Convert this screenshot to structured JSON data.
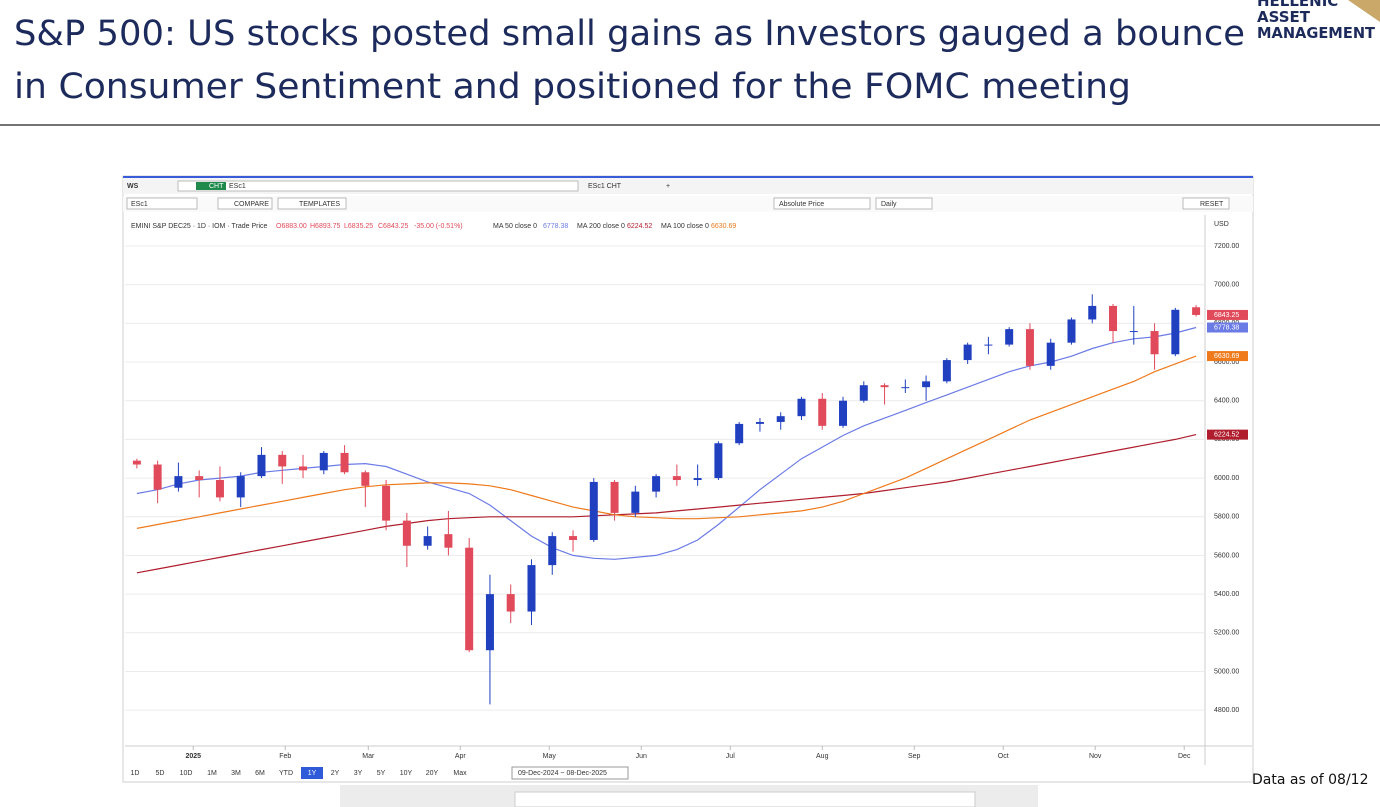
{
  "slide": {
    "title_lines": [
      "S&P 500: US stocks posted small gains as Investors gauged a bounce",
      "in Consumer Sentiment and positioned for the FOMC meeting"
    ],
    "logo": [
      "HELLENIC",
      "ASSET",
      "MANAGEMENT"
    ],
    "footnote": "Data as of 08/12"
  },
  "toolbar": {
    "workspace": "WS",
    "app": "CHT",
    "tab_symbol": "ESc1",
    "tab_name": "ESc1 CHT",
    "symbol": "ESc1",
    "compare": "COMPARE",
    "templates": "TEMPLATES",
    "price_mode": "Absolute Price",
    "interval": "Daily",
    "reset": "RESET",
    "currency": "USD",
    "quote": [
      "EMINI S&P DEC25 · 1D · IOM · Trade Price",
      "O6883.00",
      "H6893.75",
      "L6835.25",
      "C6843.25",
      "-35.00 (-0.51%)"
    ],
    "ranges": [
      "1D",
      "5D",
      "10D",
      "1M",
      "3M",
      "6M",
      "YTD",
      "1Y",
      "2Y",
      "3Y",
      "5Y",
      "10Y",
      "20Y",
      "Max"
    ],
    "active_range": "1Y",
    "date_range": "09-Dec-2024 ~ 08-Dec-2025"
  },
  "chart_data": {
    "type": "candlestick",
    "x": [
      "2024-12-13",
      "2024-12-20",
      "2024-12-27",
      "2025-01-03",
      "2025-01-10",
      "2025-01-17",
      "2025-01-24",
      "2025-01-31",
      "2025-02-07",
      "2025-02-14",
      "2025-02-21",
      "2025-02-28",
      "2025-03-07",
      "2025-03-14",
      "2025-03-21",
      "2025-03-28",
      "2025-04-04",
      "2025-04-11",
      "2025-04-18",
      "2025-04-25",
      "2025-05-02",
      "2025-05-09",
      "2025-05-16",
      "2025-05-23",
      "2025-05-30",
      "2025-06-06",
      "2025-06-13",
      "2025-06-20",
      "2025-06-27",
      "2025-07-04",
      "2025-07-11",
      "2025-07-18",
      "2025-07-25",
      "2025-08-01",
      "2025-08-08",
      "2025-08-15",
      "2025-08-22",
      "2025-08-29",
      "2025-09-05",
      "2025-09-12",
      "2025-09-19",
      "2025-09-26",
      "2025-10-03",
      "2025-10-10",
      "2025-10-17",
      "2025-10-24",
      "2025-10-31",
      "2025-11-07",
      "2025-11-14",
      "2025-11-21",
      "2025-11-28",
      "2025-12-05"
    ],
    "open": [
      6090,
      6070,
      5950,
      6010,
      5990,
      5900,
      6010,
      6120,
      6060,
      6040,
      6130,
      6030,
      5960,
      5780,
      5650,
      5710,
      5640,
      5110,
      5400,
      5310,
      5550,
      5700,
      5680,
      5980,
      5820,
      5930,
      6010,
      5990,
      6000,
      6180,
      6280,
      6290,
      6320,
      6410,
      6270,
      6400,
      6480,
      6470,
      6470,
      6500,
      6610,
      6690,
      6690,
      6770,
      6580,
      6700,
      6820,
      6890,
      6760,
      6760,
      6640,
      6883.0
    ],
    "high": [
      6100,
      6090,
      6080,
      6040,
      6060,
      6030,
      6160,
      6140,
      6120,
      6140,
      6170,
      6040,
      5990,
      5820,
      5750,
      5830,
      5690,
      5500,
      5450,
      5580,
      5720,
      5730,
      6000,
      5990,
      5960,
      6020,
      6070,
      6070,
      6190,
      6290,
      6310,
      6340,
      6420,
      6440,
      6420,
      6500,
      6490,
      6510,
      6530,
      6620,
      6700,
      6730,
      6780,
      6800,
      6720,
      6830,
      6950,
      6900,
      6890,
      6800,
      6880,
      6893.75
    ],
    "low": [
      6050,
      5870,
      5930,
      5900,
      5880,
      5850,
      6000,
      5970,
      6000,
      6020,
      6020,
      5850,
      5730,
      5540,
      5630,
      5600,
      5100,
      4830,
      5250,
      5240,
      5500,
      5620,
      5670,
      5780,
      5800,
      5900,
      5960,
      5960,
      5990,
      6170,
      6240,
      6250,
      6300,
      6250,
      6260,
      6390,
      6380,
      6440,
      6400,
      6490,
      6590,
      6640,
      6680,
      6560,
      6560,
      6690,
      6800,
      6700,
      6690,
      6560,
      6630,
      6835.25
    ],
    "close": [
      6070,
      5940,
      6010,
      5990,
      5900,
      6010,
      6120,
      6060,
      6040,
      6130,
      6030,
      5960,
      5780,
      5650,
      5700,
      5640,
      5110,
      5400,
      5310,
      5550,
      5700,
      5680,
      5980,
      5820,
      5930,
      6010,
      5990,
      6000,
      6180,
      6280,
      6290,
      6320,
      6410,
      6270,
      6400,
      6480,
      6470,
      6470,
      6500,
      6610,
      6690,
      6690,
      6770,
      6580,
      6700,
      6820,
      6890,
      6760,
      6760,
      6640,
      6870,
      6843.25
    ],
    "up_color": "#2040c0",
    "down_color": "#e04a5a",
    "series": [
      {
        "name": "MA 50 close 0",
        "color": "#6b7be6",
        "values": [
          5920,
          5940,
          5970,
          5990,
          6000,
          6010,
          6030,
          6040,
          6050,
          6060,
          6070,
          6075,
          6060,
          6020,
          5980,
          5950,
          5920,
          5860,
          5780,
          5700,
          5640,
          5600,
          5585,
          5580,
          5590,
          5600,
          5630,
          5680,
          5760,
          5850,
          5940,
          6020,
          6100,
          6160,
          6220,
          6270,
          6310,
          6350,
          6390,
          6430,
          6470,
          6510,
          6550,
          6580,
          6600,
          6630,
          6670,
          6700,
          6720,
          6730,
          6750,
          6778.38
        ]
      },
      {
        "name": "MA 200 close 0",
        "color": "#b01e2e",
        "values": [
          5510,
          5530,
          5550,
          5570,
          5590,
          5610,
          5630,
          5650,
          5670,
          5690,
          5710,
          5730,
          5750,
          5765,
          5780,
          5790,
          5795,
          5800,
          5800,
          5800,
          5800,
          5800,
          5805,
          5810,
          5815,
          5820,
          5830,
          5840,
          5850,
          5860,
          5870,
          5880,
          5890,
          5900,
          5910,
          5920,
          5935,
          5950,
          5965,
          5980,
          6000,
          6020,
          6040,
          6060,
          6080,
          6100,
          6120,
          6140,
          6160,
          6180,
          6200,
          6224.52
        ]
      },
      {
        "name": "MA 100 close 0",
        "color": "#ee7a1c",
        "values": [
          5740,
          5760,
          5780,
          5800,
          5820,
          5840,
          5860,
          5880,
          5900,
          5920,
          5940,
          5955,
          5965,
          5970,
          5975,
          5975,
          5970,
          5960,
          5940,
          5910,
          5880,
          5850,
          5830,
          5810,
          5800,
          5795,
          5790,
          5790,
          5795,
          5800,
          5810,
          5820,
          5830,
          5850,
          5880,
          5920,
          5960,
          6000,
          6050,
          6100,
          6150,
          6200,
          6250,
          6300,
          6340,
          6380,
          6420,
          6460,
          6500,
          6550,
          6590,
          6630.69
        ]
      }
    ],
    "xlim": [
      "2024-12-09",
      "2025-12-08"
    ],
    "xticks": [
      {
        "value": "2025-01-01",
        "label": "2025"
      },
      {
        "value": "2025-02-01",
        "label": "Feb"
      },
      {
        "value": "2025-03-01",
        "label": "Mar"
      },
      {
        "value": "2025-04-01",
        "label": "Apr"
      },
      {
        "value": "2025-05-01",
        "label": "May"
      },
      {
        "value": "2025-06-01",
        "label": "Jun"
      },
      {
        "value": "2025-07-01",
        "label": "Jul"
      },
      {
        "value": "2025-08-01",
        "label": "Aug"
      },
      {
        "value": "2025-09-01",
        "label": "Sep"
      },
      {
        "value": "2025-10-01",
        "label": "Oct"
      },
      {
        "value": "2025-11-01",
        "label": "Nov"
      },
      {
        "value": "2025-12-01",
        "label": "Dec"
      }
    ],
    "ylim": [
      4620,
      7360
    ],
    "yticks": [
      {
        "value": 4800,
        "label": "4800.00"
      },
      {
        "value": 5000,
        "label": "5000.00"
      },
      {
        "value": 5200,
        "label": "5200.00"
      },
      {
        "value": 5400,
        "label": "5400.00"
      },
      {
        "value": 5600,
        "label": "5600.00"
      },
      {
        "value": 5800,
        "label": "5800.00"
      },
      {
        "value": 6000,
        "label": "6000.00"
      },
      {
        "value": 6200,
        "label": "6200.00"
      },
      {
        "value": 6400,
        "label": "6400.00"
      },
      {
        "value": 6600,
        "label": "6600.00"
      },
      {
        "value": 6800,
        "label": "6800.00"
      },
      {
        "value": 7000,
        "label": "7000.00"
      },
      {
        "value": 7200,
        "label": "7200.00"
      }
    ],
    "grid": true
  }
}
